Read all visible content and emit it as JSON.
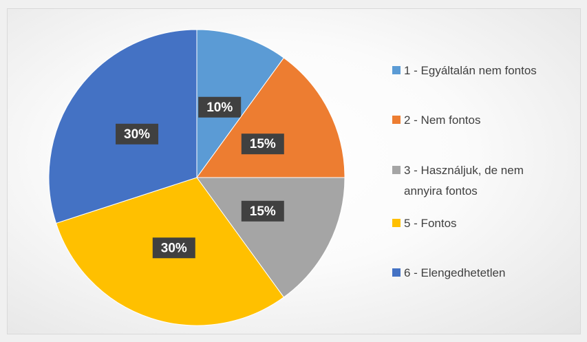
{
  "chart_data": {
    "type": "pie",
    "categories": [
      "1 - Egyáltalán nem fontos",
      "2 - Nem fontos",
      "3 - Használjuk, de nem annyira fontos",
      "5 - Fontos",
      "6 - Elengedhetetlen"
    ],
    "values": [
      10,
      15,
      15,
      30,
      30
    ],
    "value_labels": [
      "10%",
      "15%",
      "15%",
      "30%",
      "30%"
    ],
    "colors": [
      "#5b9bd5",
      "#ed7d31",
      "#a5a5a5",
      "#ffc000",
      "#4472c4"
    ]
  }
}
